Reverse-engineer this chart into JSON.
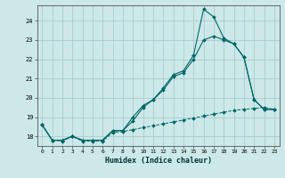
{
  "xlabel": "Humidex (Indice chaleur)",
  "bg_color": "#cce8e8",
  "grid_color": "#aacccc",
  "line_color": "#006666",
  "xlim": [
    -0.5,
    23.5
  ],
  "ylim": [
    17.5,
    24.8
  ],
  "yticks": [
    18,
    19,
    20,
    21,
    22,
    23,
    24
  ],
  "xticks": [
    0,
    1,
    2,
    3,
    4,
    5,
    6,
    7,
    8,
    9,
    10,
    11,
    12,
    13,
    14,
    15,
    16,
    17,
    18,
    19,
    20,
    21,
    22,
    23
  ],
  "series1_y": [
    18.6,
    17.8,
    17.8,
    18.0,
    17.8,
    17.8,
    17.8,
    18.3,
    18.3,
    19.0,
    19.6,
    19.9,
    20.5,
    21.2,
    21.4,
    22.2,
    24.6,
    24.2,
    23.1,
    22.8,
    22.1,
    19.9,
    19.4,
    19.4
  ],
  "series2_y": [
    18.6,
    17.8,
    17.8,
    18.0,
    17.8,
    17.8,
    17.8,
    18.3,
    18.3,
    18.8,
    19.5,
    19.9,
    20.4,
    21.1,
    21.3,
    22.0,
    23.0,
    23.2,
    23.0,
    22.8,
    22.1,
    19.9,
    19.4,
    19.4
  ],
  "series3_y": [
    18.6,
    17.8,
    17.75,
    18.0,
    17.75,
    17.75,
    17.75,
    18.2,
    18.25,
    18.35,
    18.45,
    18.55,
    18.65,
    18.75,
    18.85,
    18.95,
    19.05,
    19.15,
    19.25,
    19.35,
    19.4,
    19.45,
    19.5,
    19.4
  ]
}
